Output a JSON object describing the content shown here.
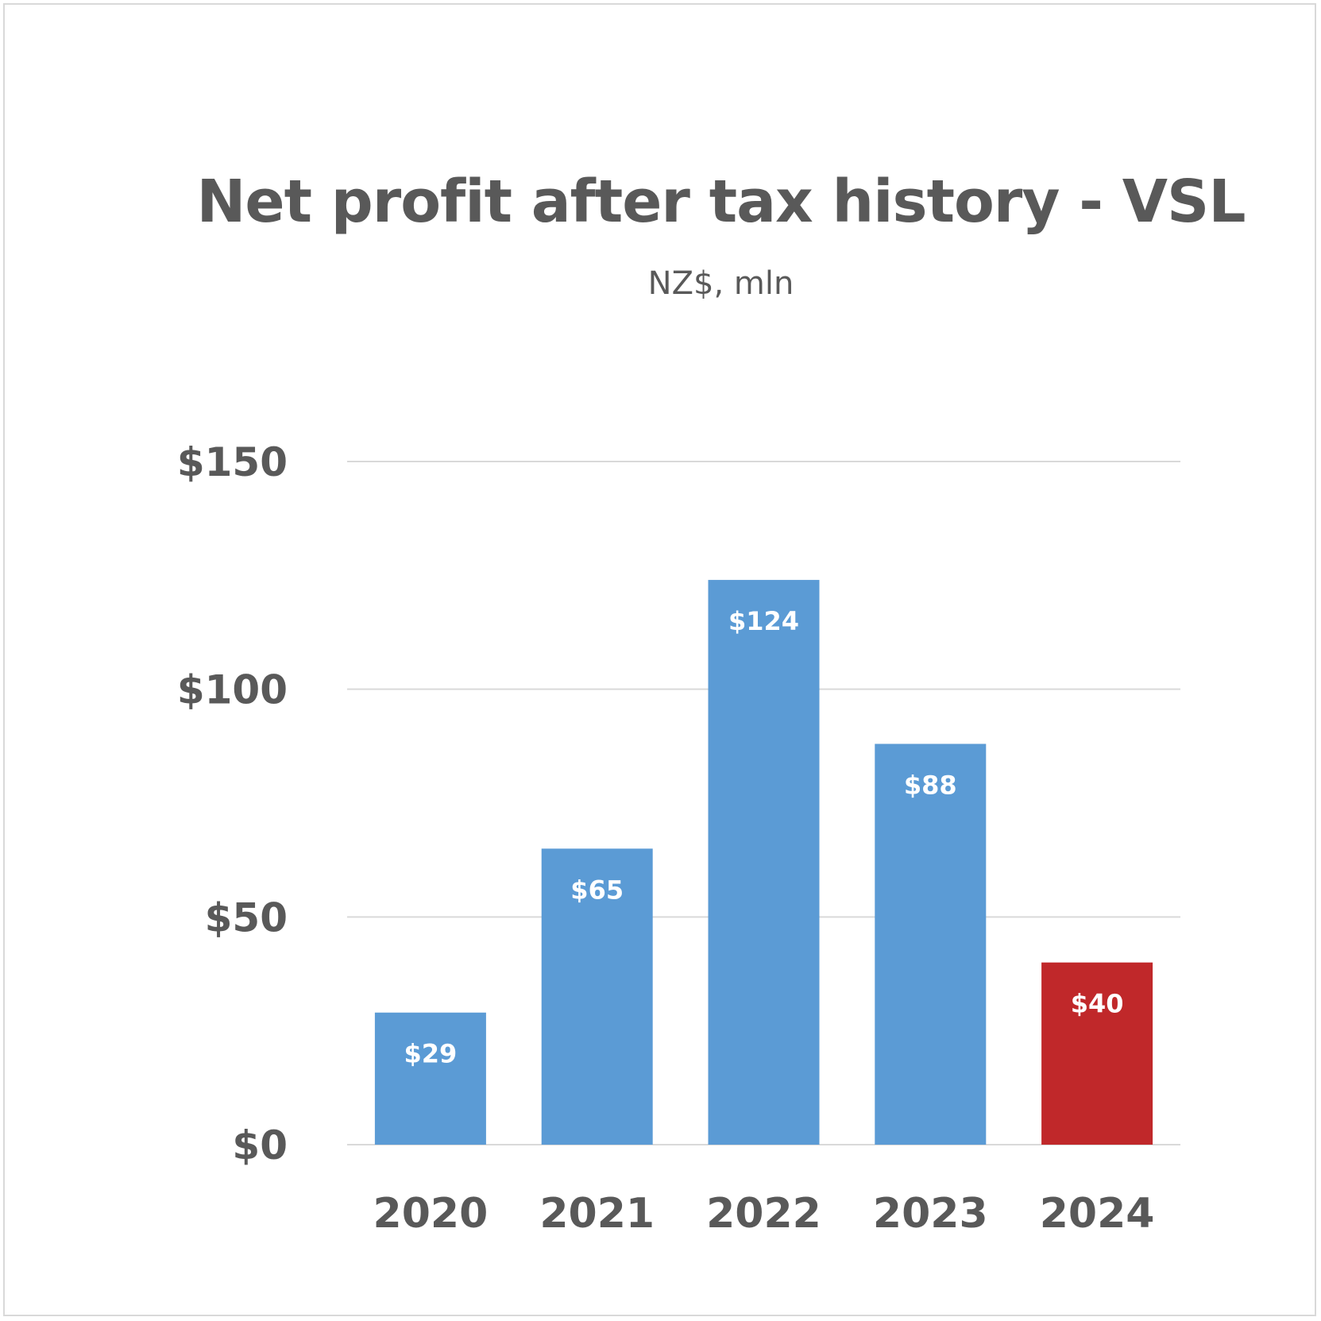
{
  "chart_data": {
    "type": "bar",
    "title": "Net profit after tax history - VSL",
    "subtitle": "NZ$, mln",
    "categories": [
      "2020",
      "2021",
      "2022",
      "2023",
      "2024"
    ],
    "values": [
      29,
      65,
      124,
      88,
      40
    ],
    "data_labels": [
      "$29",
      "$65",
      "$124",
      "$88",
      "$40"
    ],
    "bar_colors": [
      "#5b9bd5",
      "#5b9bd5",
      "#5b9bd5",
      "#5b9bd5",
      "#c0282a"
    ],
    "ylim": [
      0,
      150
    ],
    "yticks": [
      0,
      50,
      100,
      150
    ],
    "ytick_labels": [
      "$0",
      "$50",
      "$100",
      "$150"
    ],
    "grid": true,
    "legend": "none"
  }
}
